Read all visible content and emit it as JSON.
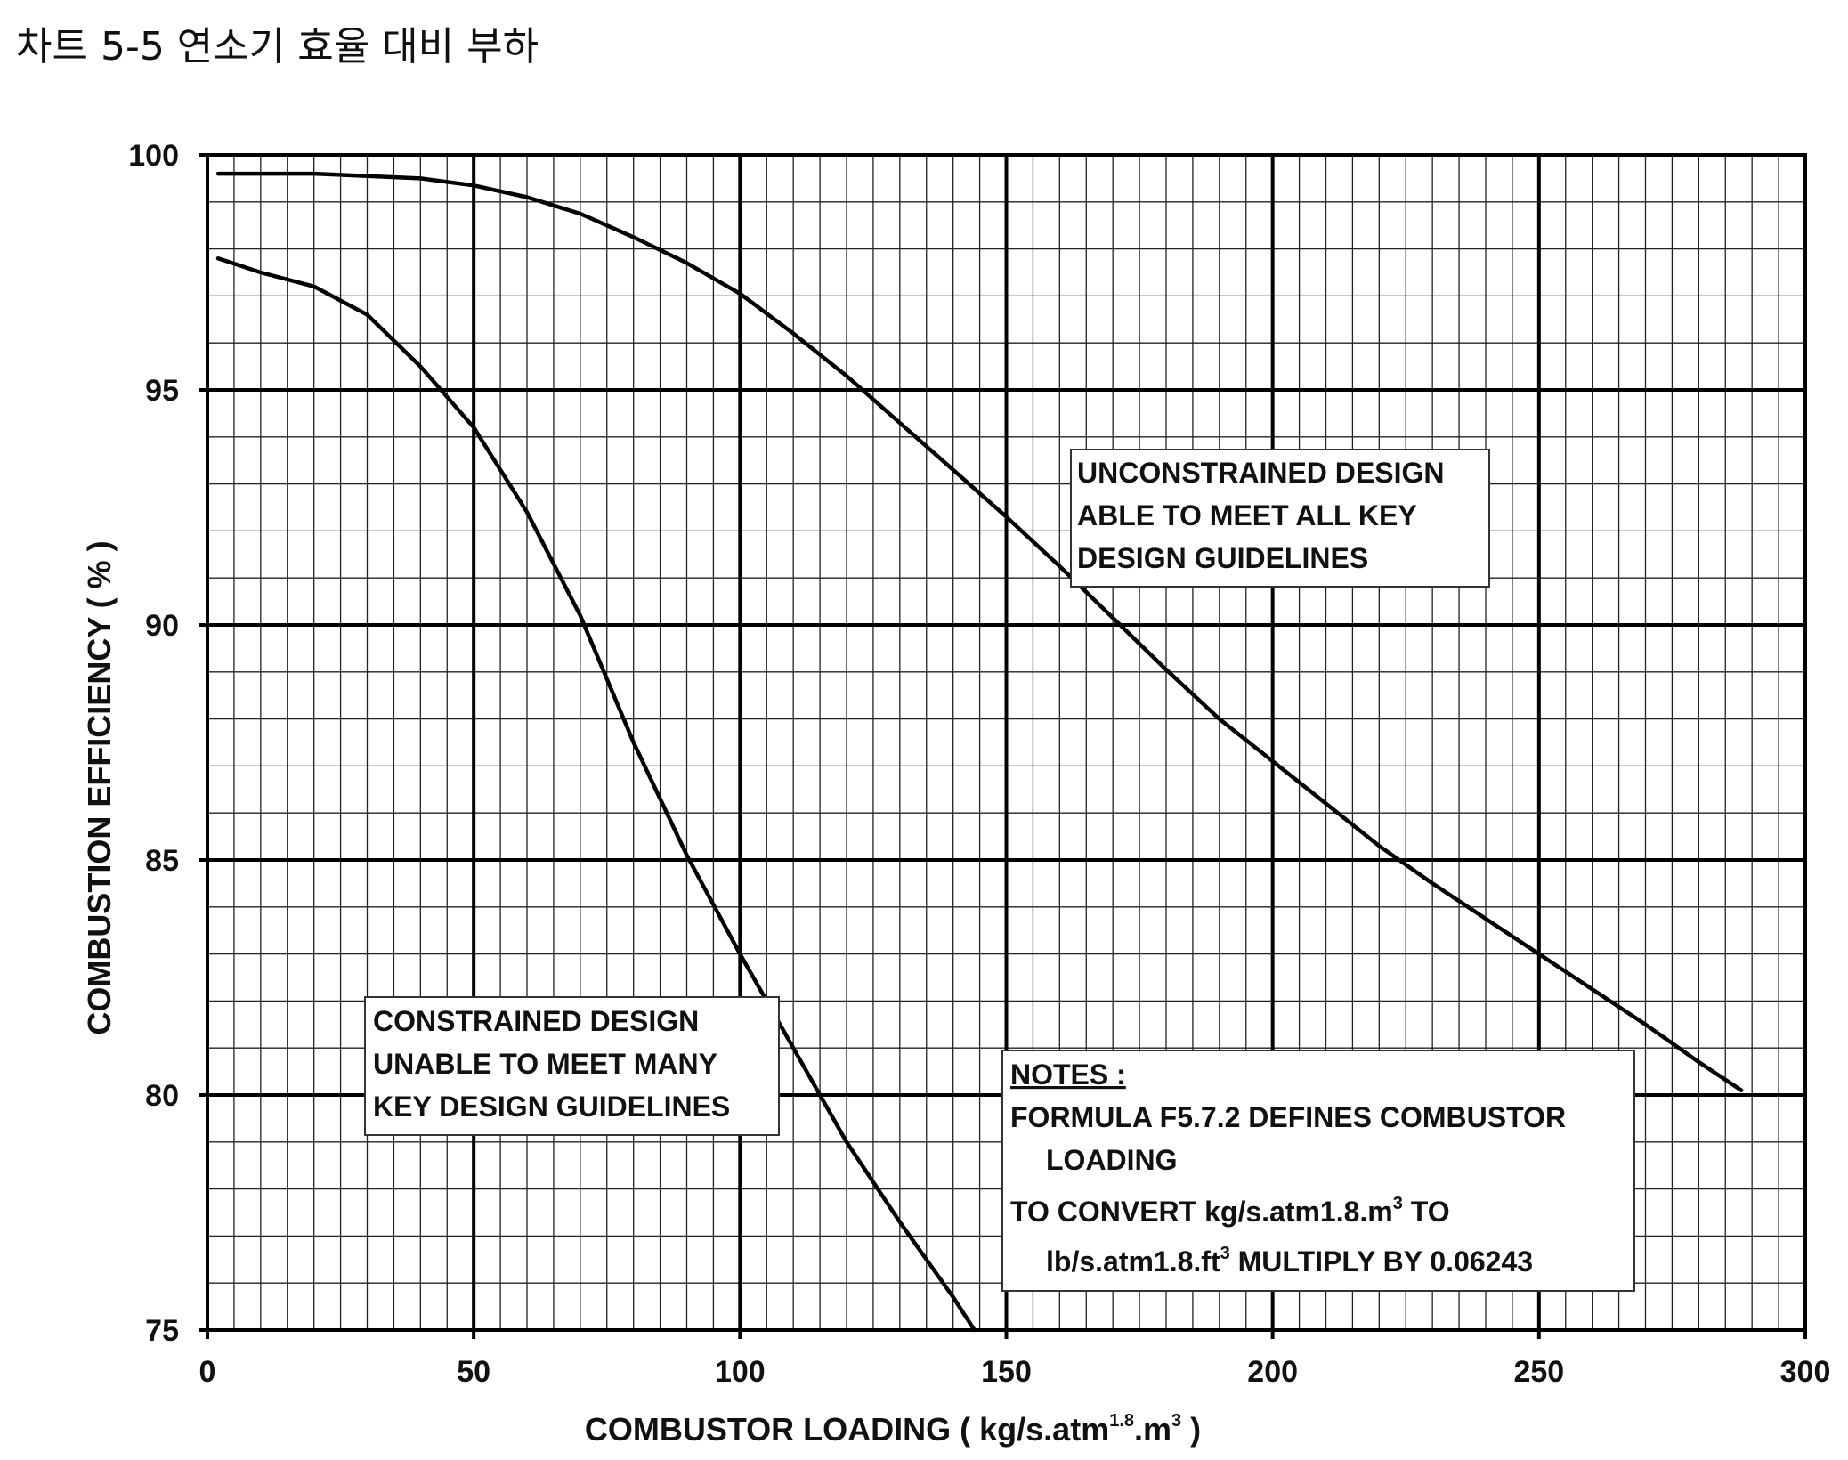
{
  "page_title": "차트 5-5 연소기 효율 대비 부하",
  "chart_data": {
    "type": "line",
    "title": "차트 5-5 연소기 효율 대비 부하",
    "xlabel": "COMBUSTOR LOADING ( kg/s.atm1.8.m3 )",
    "xlabel_parts": {
      "main": "COMBUSTOR LOADING ( kg/s.atm",
      "sup1": "1.8",
      "mid": ".m",
      "sup2": "3",
      "end": " )"
    },
    "ylabel": "COMBUSTION EFFICIENCY ( % )",
    "xlim": [
      0,
      300
    ],
    "ylim": [
      75,
      100
    ],
    "x_ticks": [
      0,
      50,
      100,
      150,
      200,
      250,
      300
    ],
    "y_ticks": [
      75,
      80,
      85,
      90,
      95,
      100
    ],
    "x_tick_labels": [
      "0",
      "50",
      "100",
      "150",
      "200",
      "250",
      "300"
    ],
    "y_tick_labels": [
      "75",
      "80",
      "85",
      "90",
      "95",
      "100"
    ],
    "minor_x_step": 5,
    "minor_y_step": 1,
    "grid": true,
    "series": [
      {
        "name": "Unconstrained design",
        "x": [
          2,
          20,
          40,
          50,
          60,
          70,
          80,
          90,
          100,
          110,
          120,
          130,
          140,
          150,
          160,
          170,
          180,
          190,
          200,
          210,
          220,
          230,
          240,
          250,
          260,
          270,
          280,
          288
        ],
        "y": [
          99.6,
          99.6,
          99.5,
          99.35,
          99.1,
          98.75,
          98.25,
          97.7,
          97.05,
          96.2,
          95.3,
          94.3,
          93.3,
          92.3,
          91.25,
          90.15,
          89.05,
          88.0,
          87.1,
          86.2,
          85.3,
          84.5,
          83.75,
          83.0,
          82.25,
          81.5,
          80.7,
          80.1
        ]
      },
      {
        "name": "Constrained design",
        "x": [
          2,
          10,
          20,
          30,
          40,
          50,
          60,
          70,
          80,
          90,
          100,
          110,
          120,
          130,
          140,
          144
        ],
        "y": [
          97.8,
          97.5,
          97.2,
          96.6,
          95.5,
          94.2,
          92.4,
          90.2,
          87.5,
          85.1,
          83.0,
          81.0,
          79.0,
          77.3,
          75.7,
          75.0
        ]
      }
    ],
    "annotations": {
      "unconstrained": [
        "UNCONSTRAINED DESIGN",
        "ABLE TO MEET ALL KEY",
        "DESIGN GUIDELINES"
      ],
      "constrained": [
        "CONSTRAINED DESIGN",
        "UNABLE TO MEET MANY",
        "KEY DESIGN GUIDELINES"
      ],
      "notes": {
        "heading": "NOTES :",
        "line1": "FORMULA F5.7.2 DEFINES COMBUSTOR",
        "line2": "LOADING",
        "line3_main": "TO CONVERT kg/s.atm1.8.m",
        "line3_sup": "3",
        "line3_end": " TO",
        "line4_main": "lb/s.atm1.8.ft",
        "line4_sup": "3",
        "line4_end": " MULTIPLY BY 0.06243"
      }
    }
  }
}
